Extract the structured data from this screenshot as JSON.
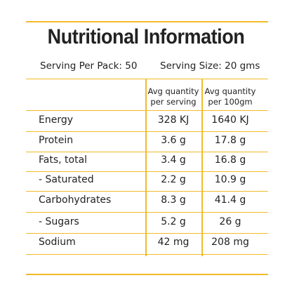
{
  "header": {
    "title": "Nutritional Information"
  },
  "serving": {
    "per_pack": "Serving Per Pack: 50",
    "size": "Serving Size: 20 gms"
  },
  "table": {
    "columns": [
      [
        "Avg quantity",
        "per serving"
      ],
      [
        "Avg quantity",
        "per 100gm"
      ]
    ],
    "rows": [
      [
        "Energy",
        "328 KJ",
        "1640 KJ"
      ],
      [
        "Protein",
        "3.6 g",
        "17.8 g"
      ],
      [
        "Fats, total",
        "3.4 g",
        "16.8 g"
      ],
      [
        "- Saturated",
        "2.2 g",
        "10.9 g"
      ],
      [
        "Carbohydrates",
        "8.3 g",
        "41.4 g"
      ],
      [
        "- Sugars",
        "5.2 g",
        "26 g"
      ],
      [
        "Sodium",
        "42 mg",
        "208 mg"
      ]
    ]
  }
}
